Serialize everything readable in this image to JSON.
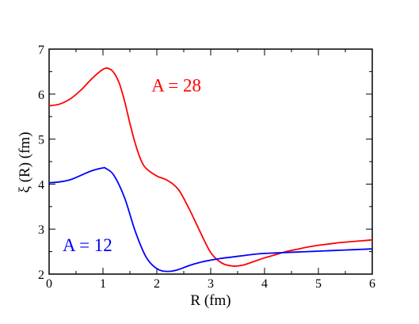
{
  "chart_data": {
    "type": "line",
    "title": "",
    "xlabel": "R (fm)",
    "ylabel": "ξ (R) (fm)",
    "xlim": [
      0,
      6
    ],
    "ylim": [
      2,
      7
    ],
    "xticks": [
      "0",
      "1",
      "2",
      "3",
      "4",
      "5",
      "6"
    ],
    "yticks": [
      "2",
      "3",
      "4",
      "5",
      "6",
      "7"
    ],
    "grid": false,
    "legend": "none",
    "series": [
      {
        "name": "A = 28",
        "color": "#ff0000",
        "x": [
          0,
          0.2,
          0.4,
          0.6,
          0.8,
          1.0,
          1.1,
          1.2,
          1.3,
          1.4,
          1.5,
          1.6,
          1.7,
          1.8,
          2.0,
          2.2,
          2.4,
          2.6,
          2.8,
          3.0,
          3.2,
          3.4,
          3.6,
          3.8,
          4.0,
          4.2,
          4.4,
          4.6,
          4.8,
          5.0,
          5.2,
          5.4,
          5.6,
          5.8,
          6.0
        ],
        "y": [
          5.74,
          5.78,
          5.9,
          6.1,
          6.35,
          6.55,
          6.57,
          6.48,
          6.25,
          5.85,
          5.35,
          4.9,
          4.55,
          4.35,
          4.18,
          4.08,
          3.88,
          3.45,
          2.95,
          2.48,
          2.25,
          2.18,
          2.2,
          2.28,
          2.36,
          2.43,
          2.5,
          2.55,
          2.6,
          2.64,
          2.67,
          2.7,
          2.72,
          2.74,
          2.76
        ]
      },
      {
        "name": "A = 12",
        "color": "#0000ff",
        "x": [
          0,
          0.2,
          0.4,
          0.6,
          0.8,
          1.0,
          1.05,
          1.2,
          1.4,
          1.6,
          1.8,
          2.0,
          2.2,
          2.4,
          2.6,
          2.8,
          3.0,
          3.2,
          3.4,
          3.6,
          3.8,
          4.0,
          4.2,
          4.4,
          4.6,
          4.8,
          5.0,
          5.2,
          5.4,
          5.6,
          5.8,
          6.0
        ],
        "y": [
          4.03,
          4.05,
          4.1,
          4.2,
          4.3,
          4.36,
          4.35,
          4.2,
          3.7,
          2.95,
          2.38,
          2.12,
          2.06,
          2.1,
          2.19,
          2.26,
          2.31,
          2.35,
          2.38,
          2.41,
          2.44,
          2.46,
          2.47,
          2.48,
          2.49,
          2.5,
          2.51,
          2.52,
          2.53,
          2.54,
          2.55,
          2.56
        ]
      }
    ],
    "annotations": [
      {
        "text": "A = 28",
        "x": 1.9,
        "y": 6.2,
        "color": "#ff0000"
      },
      {
        "text": "A = 12",
        "x": 0.25,
        "y": 2.65,
        "color": "#0000ff"
      }
    ]
  }
}
